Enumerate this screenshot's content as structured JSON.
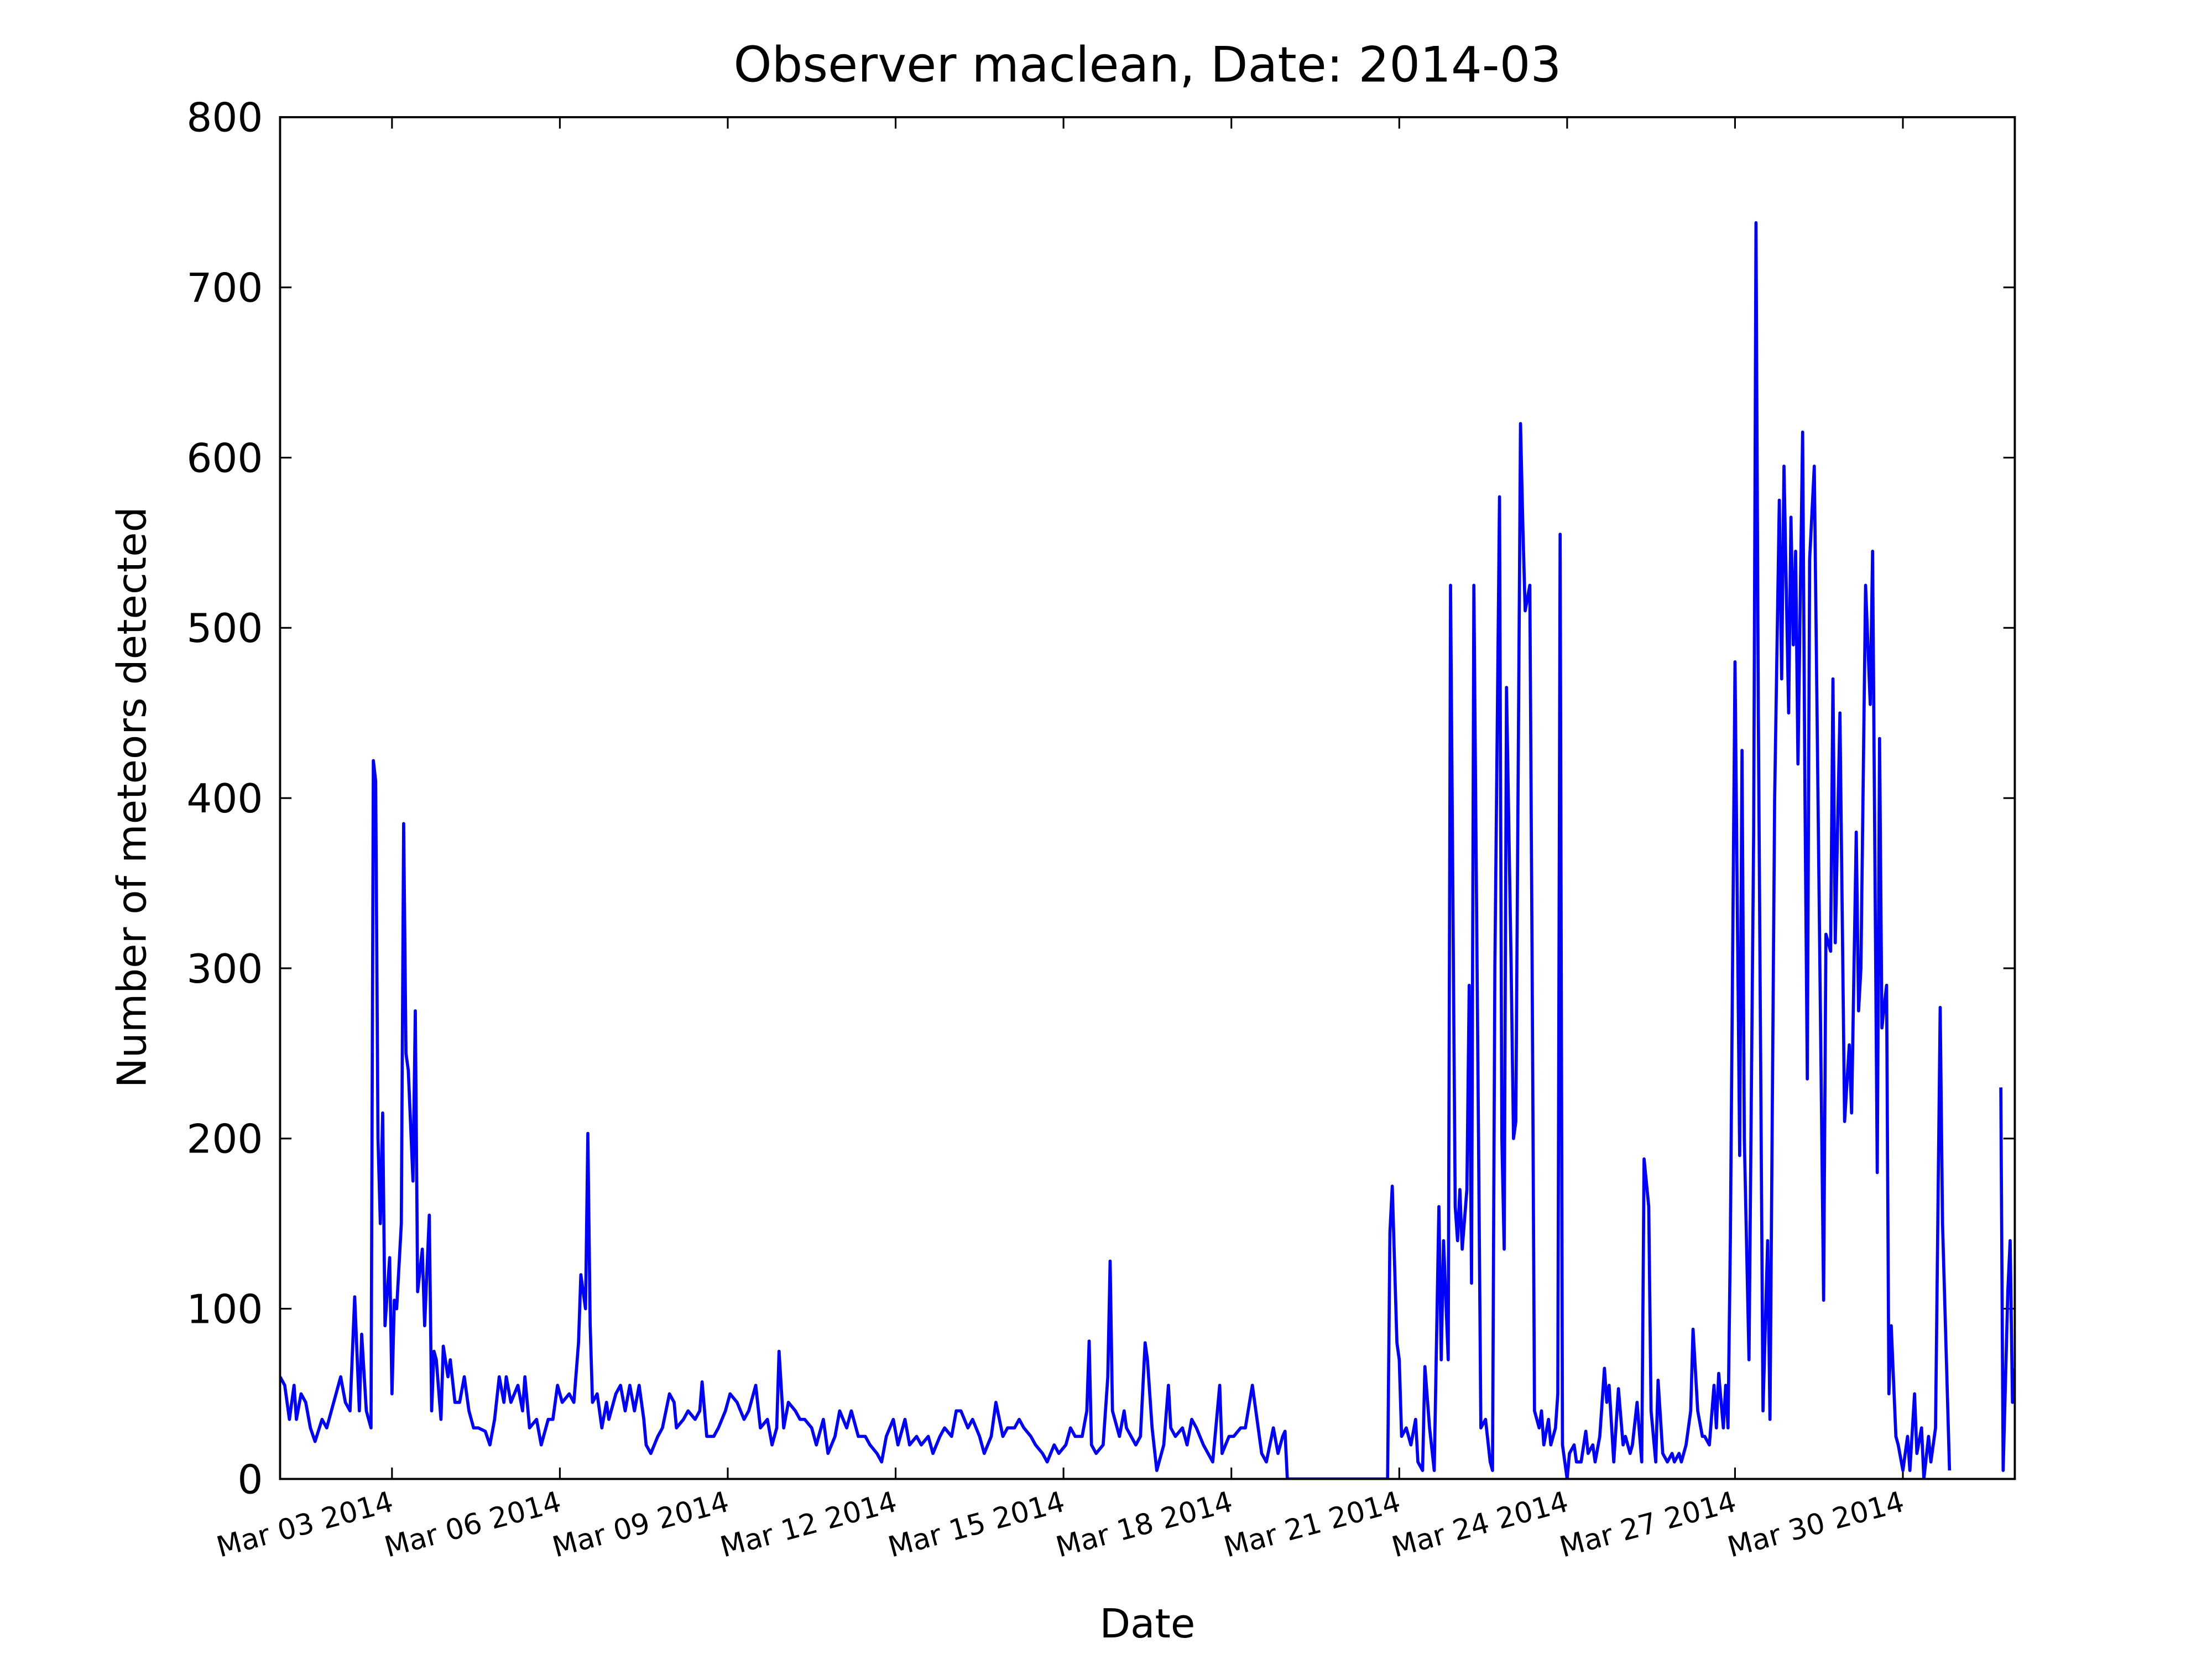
{
  "chart_data": {
    "type": "line",
    "title": "Observer maclean, Date: 2014-03",
    "xlabel": "Date",
    "ylabel": "Number of meteors detected",
    "xlim": [
      "2014-03-01",
      "2014-04-01"
    ],
    "ylim": [
      0,
      800
    ],
    "xticks": [
      {
        "value": "2014-03-03",
        "label": "Mar 03 2014"
      },
      {
        "value": "2014-03-06",
        "label": "Mar 06 2014"
      },
      {
        "value": "2014-03-09",
        "label": "Mar 09 2014"
      },
      {
        "value": "2014-03-12",
        "label": "Mar 12 2014"
      },
      {
        "value": "2014-03-15",
        "label": "Mar 15 2014"
      },
      {
        "value": "2014-03-18",
        "label": "Mar 18 2014"
      },
      {
        "value": "2014-03-21",
        "label": "Mar 21 2014"
      },
      {
        "value": "2014-03-24",
        "label": "Mar 24 2014"
      },
      {
        "value": "2014-03-27",
        "label": "Mar 27 2014"
      },
      {
        "value": "2014-03-30",
        "label": "Mar 30 2014"
      }
    ],
    "yticks": [
      0,
      100,
      200,
      300,
      400,
      500,
      600,
      700,
      800
    ],
    "grid": false,
    "x": [
      "2014-03-01T00:00",
      "2014-03-01T02:00",
      "2014-03-01T04:00",
      "2014-03-01T06:00",
      "2014-03-01T07:00",
      "2014-03-01T09:00",
      "2014-03-01T11:00",
      "2014-03-01T13:00",
      "2014-03-01T15:00",
      "2014-03-01T18:00",
      "2014-03-01T20:00",
      "2014-03-01T22:00",
      "2014-03-02T01:00",
      "2014-03-02T02:00",
      "2014-03-02T04:00",
      "2014-03-02T06:00",
      "2014-03-02T08:00",
      "2014-03-02T10:00",
      "2014-03-02T11:00",
      "2014-03-02T13:00",
      "2014-03-02T15:00",
      "2014-03-02T16:00",
      "2014-03-02T17:00",
      "2014-03-02T18:00",
      "2014-03-02T19:00",
      "2014-03-02T20:00",
      "2014-03-02T21:00",
      "2014-03-02T23:00",
      "2014-03-03T00:00",
      "2014-03-03T01:00",
      "2014-03-03T02:00",
      "2014-03-03T04:00",
      "2014-03-03T05:00",
      "2014-03-03T06:00",
      "2014-03-03T07:00",
      "2014-03-03T09:00",
      "2014-03-03T10:00",
      "2014-03-03T11:00",
      "2014-03-03T13:00",
      "2014-03-03T14:00",
      "2014-03-03T16:00",
      "2014-03-03T17:00",
      "2014-03-03T18:00",
      "2014-03-03T19:00",
      "2014-03-03T21:00",
      "2014-03-03T22:00",
      "2014-03-04T00:00",
      "2014-03-04T01:00",
      "2014-03-04T03:00",
      "2014-03-04T05:00",
      "2014-03-04T07:00",
      "2014-03-04T09:00",
      "2014-03-04T11:00",
      "2014-03-04T13:00",
      "2014-03-04T16:00",
      "2014-03-04T18:00",
      "2014-03-04T20:00",
      "2014-03-04T22:00",
      "2014-03-05T00:00",
      "2014-03-05T01:00",
      "2014-03-05T03:00",
      "2014-03-05T06:00",
      "2014-03-05T08:00",
      "2014-03-05T09:00",
      "2014-03-05T11:00",
      "2014-03-05T14:00",
      "2014-03-05T16:00",
      "2014-03-05T19:00",
      "2014-03-05T21:00",
      "2014-03-05T23:00",
      "2014-03-06T01:00",
      "2014-03-06T04:00",
      "2014-03-06T06:00",
      "2014-03-06T08:00",
      "2014-03-06T09:00",
      "2014-03-06T11:00",
      "2014-03-06T12:00",
      "2014-03-06T13:00",
      "2014-03-06T14:00",
      "2014-03-06T16:00",
      "2014-03-06T18:00",
      "2014-03-06T20:00",
      "2014-03-06T21:00",
      "2014-03-07T00:00",
      "2014-03-07T02:00",
      "2014-03-07T04:00",
      "2014-03-07T06:00",
      "2014-03-07T08:00",
      "2014-03-07T10:00",
      "2014-03-07T12:00",
      "2014-03-07T13:00",
      "2014-03-07T15:00",
      "2014-03-07T18:00",
      "2014-03-07T20:00",
      "2014-03-07T23:00",
      "2014-03-08T01:00",
      "2014-03-08T02:00",
      "2014-03-08T05:00",
      "2014-03-08T07:00",
      "2014-03-08T10:00",
      "2014-03-08T12:00",
      "2014-03-08T13:00",
      "2014-03-08T15:00",
      "2014-03-08T18:00",
      "2014-03-08T20:00",
      "2014-03-08T23:00",
      "2014-03-09T01:00",
      "2014-03-09T04:00",
      "2014-03-09T07:00",
      "2014-03-09T09:00",
      "2014-03-09T12:00",
      "2014-03-09T14:00",
      "2014-03-09T17:00",
      "2014-03-09T19:00",
      "2014-03-09T21:00",
      "2014-03-09T22:00",
      "2014-03-10T00:00",
      "2014-03-10T02:00",
      "2014-03-10T05:00",
      "2014-03-10T07:00",
      "2014-03-10T09:00",
      "2014-03-10T12:00",
      "2014-03-10T14:00",
      "2014-03-10T17:00",
      "2014-03-10T19:00",
      "2014-03-10T22:00",
      "2014-03-11T00:00",
      "2014-03-11T03:00",
      "2014-03-11T05:00",
      "2014-03-11T08:00",
      "2014-03-11T11:00",
      "2014-03-11T13:00",
      "2014-03-11T16:00",
      "2014-03-11T18:00",
      "2014-03-11T20:00",
      "2014-03-11T23:00",
      "2014-03-12T01:00",
      "2014-03-12T04:00",
      "2014-03-12T06:00",
      "2014-03-12T09:00",
      "2014-03-12T11:00",
      "2014-03-12T14:00",
      "2014-03-12T16:00",
      "2014-03-12T19:00",
      "2014-03-12T21:00",
      "2014-03-13T00:00",
      "2014-03-13T02:00",
      "2014-03-13T04:00",
      "2014-03-13T07:00",
      "2014-03-13T09:00",
      "2014-03-13T12:00",
      "2014-03-13T14:00",
      "2014-03-13T17:00",
      "2014-03-13T19:00",
      "2014-03-13T22:00",
      "2014-03-14T00:00",
      "2014-03-14T03:00",
      "2014-03-14T05:00",
      "2014-03-14T07:00",
      "2014-03-14T10:00",
      "2014-03-14T12:00",
      "2014-03-14T15:00",
      "2014-03-14T17:00",
      "2014-03-14T20:00",
      "2014-03-14T22:00",
      "2014-03-15T01:00",
      "2014-03-15T03:00",
      "2014-03-15T05:00",
      "2014-03-15T08:00",
      "2014-03-15T10:00",
      "2014-03-15T11:00",
      "2014-03-15T12:00",
      "2014-03-15T14:00",
      "2014-03-15T17:00",
      "2014-03-15T19:00",
      "2014-03-15T20:00",
      "2014-03-15T21:00",
      "2014-03-16T00:00",
      "2014-03-16T02:00",
      "2014-03-16T03:00",
      "2014-03-16T05:00",
      "2014-03-16T07:00",
      "2014-03-16T09:00",
      "2014-03-16T11:00",
      "2014-03-16T12:00",
      "2014-03-16T14:00",
      "2014-03-16T16:00",
      "2014-03-16T19:00",
      "2014-03-16T21:00",
      "2014-03-16T22:00",
      "2014-03-17T00:00",
      "2014-03-17T03:00",
      "2014-03-17T05:00",
      "2014-03-17T07:00",
      "2014-03-17T09:00",
      "2014-03-17T12:00",
      "2014-03-17T14:00",
      "2014-03-17T16:00",
      "2014-03-17T19:00",
      "2014-03-17T20:00",
      "2014-03-17T23:00",
      "2014-03-18T01:00",
      "2014-03-18T04:00",
      "2014-03-18T06:00",
      "2014-03-18T09:00",
      "2014-03-18T11:00",
      "2014-03-18T13:00",
      "2014-03-18T15:00",
      "2014-03-18T18:00",
      "2014-03-18T20:00",
      "2014-03-18T22:00",
      "2014-03-18T23:00",
      "2014-03-19T00:00",
      "2014-03-20T19:00",
      "2014-03-20T20:00",
      "2014-03-20T21:00",
      "2014-03-20T23:00",
      "2014-03-21T00:00",
      "2014-03-21T01:00",
      "2014-03-21T03:00",
      "2014-03-21T05:00",
      "2014-03-21T07:00",
      "2014-03-21T08:00",
      "2014-03-21T10:00",
      "2014-03-21T11:00",
      "2014-03-21T13:00",
      "2014-03-21T15:00",
      "2014-03-21T17:00",
      "2014-03-21T18:00",
      "2014-03-21T19:00",
      "2014-03-21T21:00",
      "2014-03-21T22:00",
      "2014-03-22T00:00",
      "2014-03-22T01:00",
      "2014-03-22T02:00",
      "2014-03-22T03:00",
      "2014-03-22T05:00",
      "2014-03-22T06:00",
      "2014-03-22T07:00",
      "2014-03-22T08:00",
      "2014-03-22T10:00",
      "2014-03-22T11:00",
      "2014-03-22T13:00",
      "2014-03-22T15:00",
      "2014-03-22T16:00",
      "2014-03-22T17:00",
      "2014-03-22T19:00",
      "2014-03-22T20:00",
      "2014-03-22T21:00",
      "2014-03-22T22:00",
      "2014-03-23T00:00",
      "2014-03-23T01:00",
      "2014-03-23T02:00",
      "2014-03-23T04:00",
      "2014-03-23T05:00",
      "2014-03-23T06:00",
      "2014-03-23T08:00",
      "2014-03-23T09:00",
      "2014-03-23T10:00",
      "2014-03-23T12:00",
      "2014-03-23T13:00",
      "2014-03-23T14:00",
      "2014-03-23T16:00",
      "2014-03-23T17:00",
      "2014-03-23T19:00",
      "2014-03-23T20:00",
      "2014-03-23T21:00",
      "2014-03-23T22:00",
      "2014-03-24T00:00",
      "2014-03-24T01:00",
      "2014-03-24T03:00",
      "2014-03-24T04:00",
      "2014-03-24T06:00",
      "2014-03-24T08:00",
      "2014-03-24T09:00",
      "2014-03-24T11:00",
      "2014-03-24T12:00",
      "2014-03-24T14:00",
      "2014-03-24T16:00",
      "2014-03-24T17:00",
      "2014-03-24T18:00",
      "2014-03-24T20:00",
      "2014-03-24T22:00",
      "2014-03-25T00:00",
      "2014-03-25T01:00",
      "2014-03-25T03:00",
      "2014-03-25T04:00",
      "2014-03-25T06:00",
      "2014-03-25T08:00",
      "2014-03-25T09:00",
      "2014-03-25T11:00",
      "2014-03-25T12:00",
      "2014-03-25T14:00",
      "2014-03-25T15:00",
      "2014-03-25T17:00",
      "2014-03-25T19:00",
      "2014-03-25T21:00",
      "2014-03-25T22:00",
      "2014-03-26T00:00",
      "2014-03-26T01:00",
      "2014-03-26T03:00",
      "2014-03-26T05:00",
      "2014-03-26T06:00",
      "2014-03-26T08:00",
      "2014-03-26T10:00",
      "2014-03-26T11:00",
      "2014-03-26T13:00",
      "2014-03-26T15:00",
      "2014-03-26T16:00",
      "2014-03-26T17:00",
      "2014-03-26T19:00",
      "2014-03-26T20:00",
      "2014-03-26T21:00",
      "2014-03-26T22:00",
      "2014-03-27T00:00",
      "2014-03-27T02:00",
      "2014-03-27T03:00",
      "2014-03-27T04:00",
      "2014-03-27T06:00",
      "2014-03-27T08:00",
      "2014-03-27T09:00",
      "2014-03-27T10:00",
      "2014-03-27T12:00",
      "2014-03-27T14:00",
      "2014-03-27T15:00",
      "2014-03-27T17:00",
      "2014-03-27T19:00",
      "2014-03-27T20:00",
      "2014-03-27T21:00",
      "2014-03-27T23:00",
      "2014-03-28T00:00",
      "2014-03-28T01:00",
      "2014-03-28T02:00",
      "2014-03-28T03:00",
      "2014-03-28T05:00",
      "2014-03-28T06:00",
      "2014-03-28T07:00",
      "2014-03-28T08:00",
      "2014-03-28T10:00",
      "2014-03-28T12:00",
      "2014-03-28T14:00",
      "2014-03-28T15:00",
      "2014-03-28T17:00",
      "2014-03-28T18:00",
      "2014-03-28T19:00",
      "2014-03-28T21:00",
      "2014-03-28T23:00",
      "2014-03-29T01:00",
      "2014-03-29T02:00",
      "2014-03-29T04:00",
      "2014-03-29T05:00",
      "2014-03-29T06:00",
      "2014-03-29T08:00",
      "2014-03-29T10:00",
      "2014-03-29T11:00",
      "2014-03-29T13:00",
      "2014-03-29T14:00",
      "2014-03-29T15:00",
      "2014-03-29T17:00",
      "2014-03-29T18:00",
      "2014-03-29T19:00",
      "2014-03-29T21:00",
      "2014-03-29T22:00",
      "2014-03-30T00:00",
      "2014-03-30T02:00",
      "2014-03-30T03:00",
      "2014-03-30T05:00",
      "2014-03-30T06:00",
      "2014-03-30T08:00",
      "2014-03-30T09:00",
      "2014-03-30T11:00",
      "2014-03-30T12:00",
      "2014-03-30T14:00",
      "2014-03-30T16:00",
      "2014-03-30T17:00",
      "2014-03-30T20:00",
      "2014-03-31T00:00",
      "2014-03-31T18:00",
      "2014-03-31T19:00",
      "2014-03-31T21:00",
      "2014-03-31T22:00",
      "2014-03-31T23:00",
      "2014-04-01T00:00"
    ],
    "series": [
      {
        "color": "#0000ff",
        "values": [
          60,
          55,
          35,
          55,
          35,
          50,
          45,
          30,
          22,
          35,
          30,
          40,
          55,
          60,
          45,
          40,
          107,
          40,
          85,
          40,
          30,
          422,
          410,
          200,
          150,
          215,
          90,
          130,
          50,
          105,
          100,
          150,
          385,
          250,
          240,
          175,
          275,
          110,
          135,
          90,
          155,
          40,
          75,
          70,
          35,
          78,
          60,
          70,
          45,
          45,
          60,
          40,
          30,
          30,
          28,
          20,
          35,
          60,
          45,
          60,
          45,
          55,
          40,
          60,
          30,
          35,
          20,
          35,
          35,
          55,
          45,
          50,
          45,
          80,
          120,
          100,
          203,
          90,
          45,
          50,
          30,
          45,
          35,
          50,
          55,
          40,
          55,
          40,
          55,
          35,
          20,
          15,
          25,
          30,
          50,
          45,
          30,
          35,
          40,
          35,
          40,
          57,
          25,
          25,
          30,
          40,
          50,
          45,
          35,
          40,
          55,
          30,
          35,
          20,
          30,
          75,
          30,
          45,
          40,
          35,
          35,
          30,
          20,
          35,
          15,
          25,
          40,
          30,
          40,
          25,
          25,
          20,
          15,
          10,
          25,
          35,
          20,
          35,
          20,
          25,
          20,
          25,
          15,
          25,
          30,
          25,
          40,
          40,
          30,
          35,
          25,
          15,
          25,
          45,
          25,
          30,
          30,
          35,
          30,
          25,
          20,
          15,
          10,
          20,
          15,
          20,
          30,
          25,
          25,
          40,
          81,
          20,
          15,
          20,
          60,
          128,
          40,
          25,
          40,
          30,
          25,
          20,
          25,
          80,
          70,
          30,
          5,
          20,
          55,
          30,
          25,
          30,
          20,
          35,
          30,
          20,
          15,
          10,
          55,
          15,
          25,
          25,
          30,
          30,
          55,
          35,
          15,
          10,
          30,
          15,
          25,
          28,
          0,
          0,
          145,
          172,
          80,
          70,
          25,
          30,
          20,
          35,
          10,
          5,
          66,
          30,
          5,
          160,
          70,
          140,
          70,
          525,
          160,
          140,
          170,
          135,
          170,
          290,
          115,
          525,
          200,
          30,
          35,
          10,
          5,
          300,
          577,
          200,
          135,
          465,
          300,
          200,
          210,
          620,
          560,
          510,
          525,
          300,
          40,
          30,
          40,
          20,
          35,
          20,
          30,
          50,
          555,
          20,
          0,
          15,
          20,
          10,
          10,
          28,
          15,
          20,
          10,
          25,
          65,
          45,
          55,
          10,
          53,
          20,
          25,
          15,
          20,
          45,
          10,
          188,
          160,
          40,
          10,
          58,
          15,
          10,
          15,
          10,
          15,
          10,
          20,
          40,
          88,
          40,
          25,
          25,
          20,
          55,
          30,
          62,
          30,
          55,
          30,
          140,
          480,
          190,
          428,
          200,
          70,
          380,
          738,
          450,
          40,
          140,
          35,
          400,
          575,
          470,
          595,
          450,
          565,
          490,
          545,
          420,
          615,
          400,
          235,
          540,
          595,
          350,
          105,
          320,
          310,
          470,
          315,
          450,
          210,
          255,
          215,
          380,
          275,
          300,
          525,
          455,
          545,
          180,
          435,
          265,
          290,
          50,
          90,
          25,
          20,
          5,
          25,
          5,
          50,
          15,
          30,
          0,
          25,
          10,
          30,
          277,
          150,
          5,
          null,
          230,
          5,
          110,
          140,
          45,
          65
        ]
      }
    ]
  }
}
